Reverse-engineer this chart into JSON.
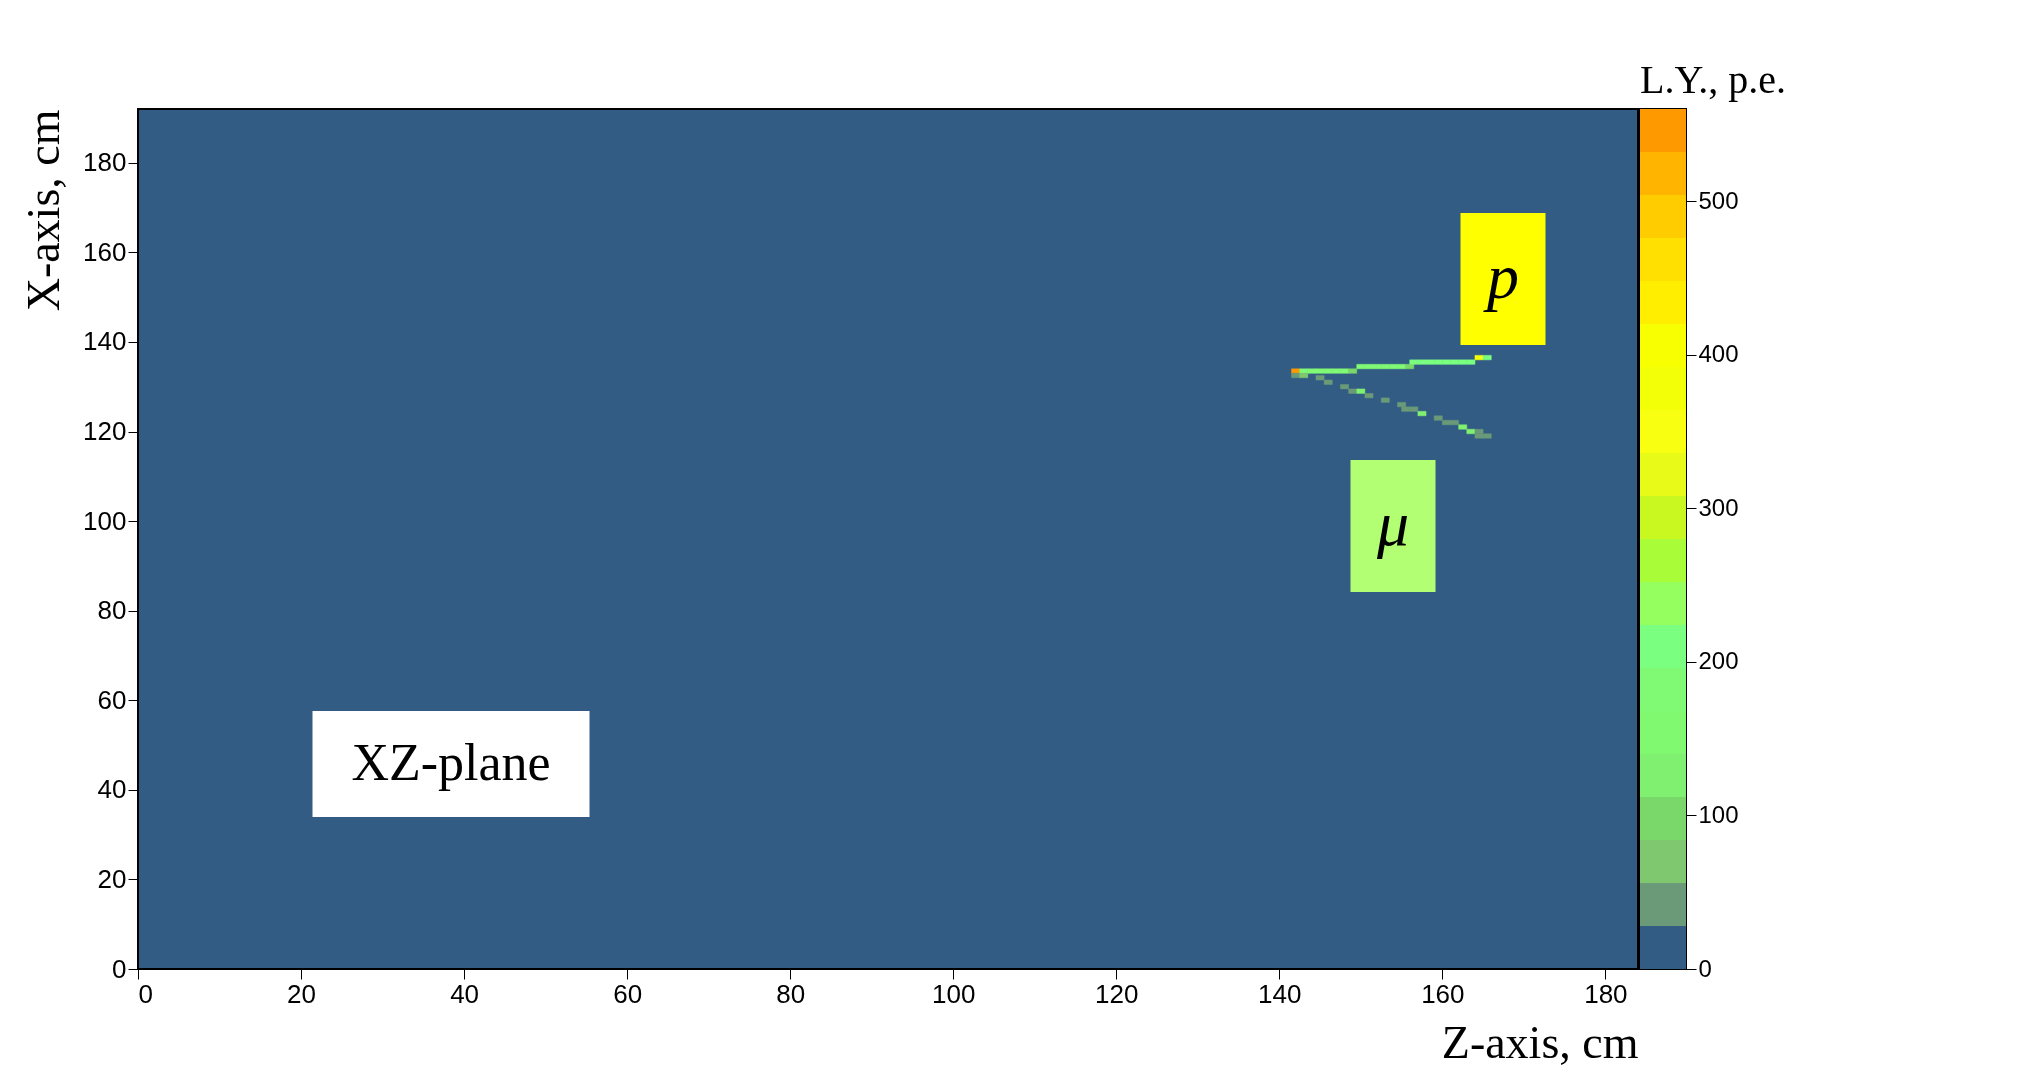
{
  "chart_data": {
    "type": "scatter",
    "marker": "square",
    "xlabel": "Z-axis, cm",
    "ylabel": "X-axis, cm",
    "clabel": "L.Y., p.e.",
    "xlim": [
      0,
      184
    ],
    "ylim": [
      0,
      192
    ],
    "xticks": [
      0,
      20,
      40,
      60,
      80,
      100,
      120,
      140,
      160,
      180
    ],
    "yticks": [
      0,
      20,
      40,
      60,
      80,
      100,
      120,
      140,
      160,
      180
    ],
    "clim": [
      0,
      560
    ],
    "cticks": [
      0,
      100,
      200,
      300,
      400,
      500
    ],
    "series": [
      {
        "x": [
          142,
          143,
          144,
          145,
          146,
          147,
          148,
          149,
          142,
          143,
          150,
          151,
          152,
          153,
          154,
          155,
          156,
          156.5,
          157.5,
          158.5,
          159.5,
          160.5,
          161.5,
          162.5,
          163.5,
          164.5,
          165.5
        ],
        "values": [
          133.5,
          133.5,
          133.5,
          133.5,
          133.5,
          133.5,
          133.5,
          133.5,
          132.5,
          132.5,
          134.5,
          134.5,
          134.5,
          134.5,
          134.5,
          134.5,
          134.5,
          135.5,
          135.5,
          135.5,
          135.5,
          135.5,
          135.5,
          135.5,
          135.5,
          136.5,
          136.5
        ],
        "cvalues": [
          550,
          170,
          170,
          170,
          170,
          170,
          170,
          90,
          50,
          80,
          170,
          170,
          170,
          170,
          170,
          170,
          90,
          200,
          200,
          200,
          200,
          200,
          200,
          200,
          200,
          380,
          200
        ],
        "colors": [
          "#ff9900",
          "#80fa75",
          "#80fa75",
          "#80fa75",
          "#80fa75",
          "#80fa75",
          "#80fa75",
          "#7ad86a",
          "#6a9a78",
          "#80c870",
          "#80fa75",
          "#80fa75",
          "#80fa75",
          "#80fa75",
          "#80fa75",
          "#80fa75",
          "#7ad86a",
          "#7aff80",
          "#7aff80",
          "#7aff80",
          "#7aff80",
          "#7aff80",
          "#7aff80",
          "#7aff80",
          "#7aff80",
          "#f2ff06",
          "#7aff80"
        ]
      },
      {
        "x": [
          145,
          146,
          148,
          149,
          150,
          151,
          153,
          155,
          155.5,
          156.5,
          157.5,
          159.5,
          160.5,
          161.5,
          162.5,
          163.5,
          164.5,
          164.5,
          165.5
        ],
        "values": [
          132,
          131,
          130,
          129,
          129,
          128,
          127,
          126,
          125,
          125,
          124,
          123,
          122,
          122,
          121,
          120,
          120,
          119,
          119
        ],
        "cvalues": [
          40,
          50,
          50,
          50,
          120,
          50,
          50,
          50,
          50,
          50,
          120,
          50,
          50,
          50,
          120,
          120,
          50,
          50,
          50
        ],
        "colors": [
          "#6a9a78",
          "#6a9a78",
          "#6a9a78",
          "#6a9a78",
          "#80f070",
          "#6a9a78",
          "#6a9a78",
          "#6a9a78",
          "#6a9a78",
          "#6a9a78",
          "#80f070",
          "#6a9a78",
          "#6a9a78",
          "#6a9a78",
          "#80f070",
          "#80f070",
          "#6a9a78",
          "#6a9a78",
          "#6a9a78"
        ]
      }
    ],
    "annotations": [
      "XZ-plane",
      "p",
      "μ"
    ]
  }
}
